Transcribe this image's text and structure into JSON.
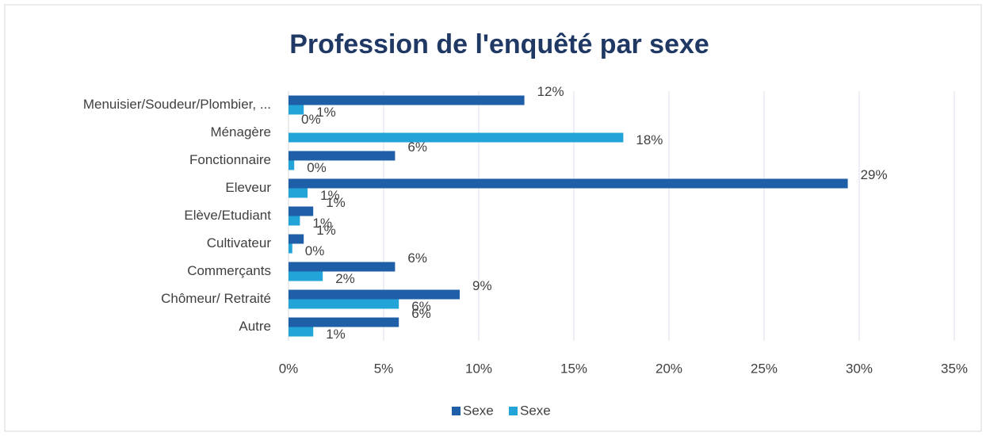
{
  "chart_data": {
    "type": "hbar",
    "title": "Profession de l'enquêté par sexe",
    "categories": [
      "Menuisier/Soudeur/Plombier, ...",
      "Ménagère",
      "Fonctionnaire",
      "Eleveur",
      "Elève/Etudiant",
      "Cultivateur",
      "Commerçants",
      "Chômeur/ Retraité",
      "Autre"
    ],
    "series": [
      {
        "name": "Sexe",
        "color": "#1f5fa8",
        "values": [
          12.4,
          0,
          5.6,
          29.4,
          1.3,
          0.8,
          5.6,
          9.0,
          5.8
        ],
        "value_labels": [
          "12%",
          "0%",
          "6%",
          "29%",
          "1%",
          "1%",
          "6%",
          "9%",
          "6%"
        ]
      },
      {
        "name": "Sexe",
        "color": "#22a4d8",
        "values": [
          0.8,
          17.6,
          0.3,
          1.0,
          0.6,
          0.2,
          1.8,
          5.8,
          1.3
        ],
        "value_labels": [
          "1%",
          "18%",
          "0%",
          "1%",
          "1%",
          "0%",
          "2%",
          "6%",
          "1%"
        ]
      }
    ],
    "xlim": [
      0,
      35
    ],
    "xticks": [
      {
        "value": 0,
        "label": "0%"
      },
      {
        "value": 5,
        "label": "5%"
      },
      {
        "value": 10,
        "label": "10%"
      },
      {
        "value": 15,
        "label": "15%"
      },
      {
        "value": 20,
        "label": "20%"
      },
      {
        "value": 25,
        "label": "25%"
      },
      {
        "value": 30,
        "label": "30%"
      },
      {
        "value": 35,
        "label": "35%"
      }
    ],
    "grid": true,
    "legend": "bottom"
  }
}
